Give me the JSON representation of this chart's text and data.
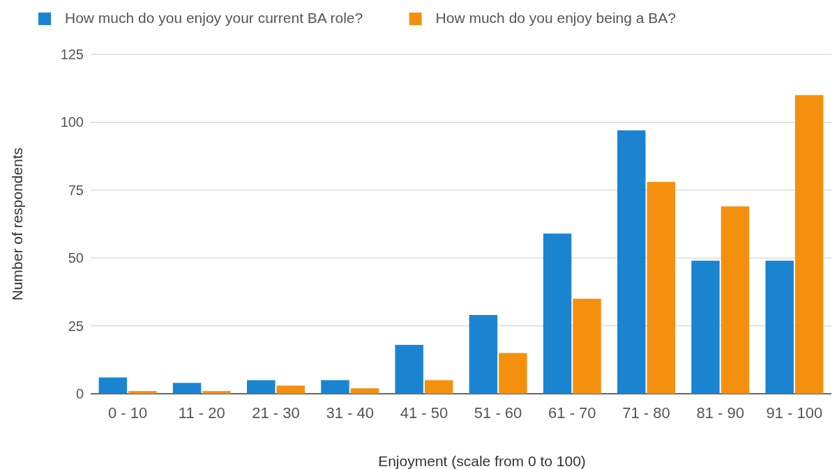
{
  "chart_data": {
    "type": "bar",
    "xlabel": "Enjoyment (scale from 0 to 100)",
    "ylabel": "Number of respondents",
    "categories": [
      "0 - 10",
      "11 - 20",
      "21 - 30",
      "31 - 40",
      "41 - 50",
      "51 - 60",
      "61 - 70",
      "71 - 80",
      "81 - 90",
      "91 - 100"
    ],
    "series": [
      {
        "name": "How much do you enjoy your current BA role?",
        "color": "#1a84d1",
        "values": [
          6,
          4,
          5,
          5,
          18,
          29,
          59,
          97,
          49,
          49
        ]
      },
      {
        "name": "How much do you enjoy being a BA?",
        "color": "#f5900f",
        "values": [
          1,
          1,
          3,
          2,
          5,
          15,
          35,
          78,
          69,
          110
        ]
      }
    ],
    "ylim": [
      0,
      125
    ],
    "yticks": [
      0,
      25,
      50,
      75,
      100,
      125
    ],
    "grid": "y",
    "legend": "top left"
  }
}
